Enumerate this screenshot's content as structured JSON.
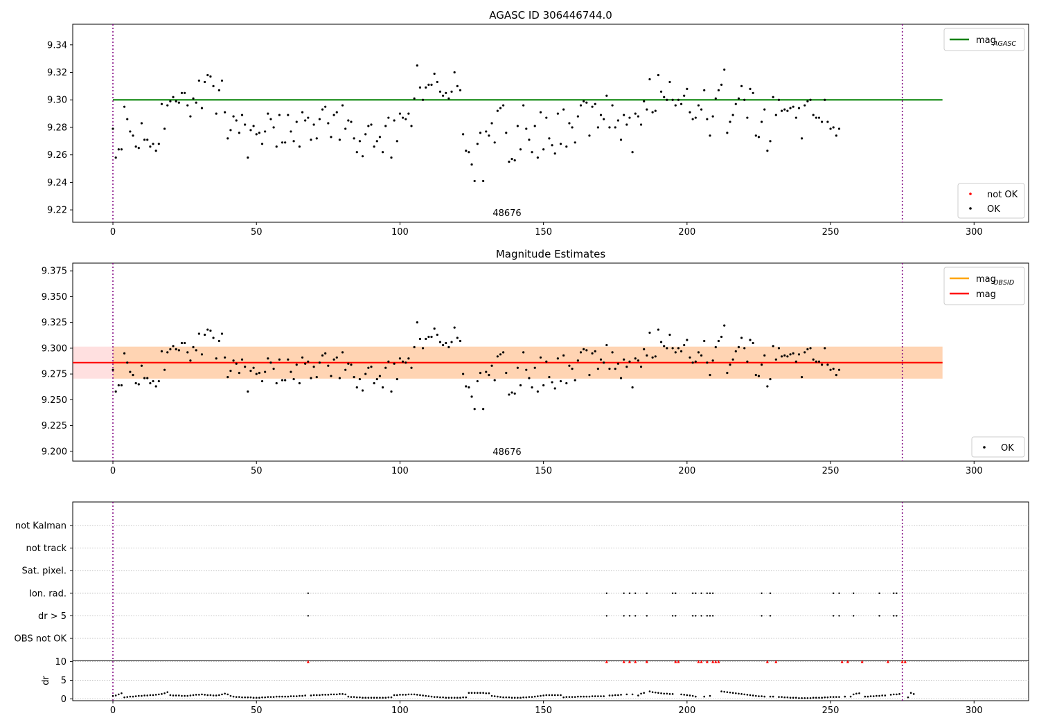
{
  "chart_data": [
    {
      "type": "scatter",
      "title": "AGASC ID 306446744.0",
      "annotation": "48676",
      "xlim": [
        -14,
        319
      ],
      "ylim": [
        9.211,
        9.355
      ],
      "xticks": [
        0,
        50,
        100,
        150,
        200,
        250,
        300
      ],
      "yticks": [
        9.22,
        9.24,
        9.26,
        9.28,
        9.3,
        9.32,
        9.34
      ],
      "ytick_labels": [
        "9.22",
        "9.24",
        "9.26",
        "9.28",
        "9.30",
        "9.32",
        "9.34"
      ],
      "vlines": [
        0,
        275
      ],
      "mag_agasc": 9.3,
      "line_range": [
        0,
        289
      ],
      "legend_lines": [
        {
          "label": "mag",
          "sub": "AGASC",
          "color": "#008000"
        }
      ],
      "legend_points": [
        {
          "label": "not OK",
          "color": "#ff0000"
        },
        {
          "label": "OK",
          "color": "#000000"
        }
      ],
      "legend_lines_position": "upper right",
      "legend_points_position": "lower right",
      "series": [
        {
          "name": "OK",
          "color": "#000000",
          "x_start": 0,
          "x_step": 1,
          "y": [
            9.279,
            9.258,
            9.264,
            9.264,
            9.295,
            9.286,
            9.277,
            9.274,
            9.266,
            9.265,
            9.283,
            9.271,
            9.271,
            9.266,
            9.268,
            9.263,
            9.268,
            9.297,
            9.279,
            9.296,
            9.299,
            9.302,
            9.299,
            9.298,
            9.305,
            9.305,
            9.296,
            9.288,
            9.301,
            9.298,
            9.314,
            9.294,
            9.313,
            9.318,
            9.317,
            9.31,
            9.29,
            9.307,
            9.314,
            9.291,
            9.272,
            9.278,
            9.288,
            9.285,
            9.276,
            9.289,
            9.282,
            9.258,
            9.278,
            9.281,
            9.275,
            9.276,
            9.268,
            9.277,
            9.29,
            9.286,
            9.28,
            9.266,
            9.289,
            9.269,
            9.269,
            9.289,
            9.277,
            9.27,
            9.284,
            9.266,
            9.291,
            9.285,
            9.287,
            9.271,
            9.282,
            9.272,
            9.286,
            9.293,
            9.295,
            9.283,
            9.273,
            9.289,
            9.291,
            9.271,
            9.296,
            9.279,
            9.285,
            9.284,
            9.272,
            9.262,
            9.27,
            9.259,
            9.275,
            9.281,
            9.282,
            9.266,
            9.27,
            9.273,
            9.262,
            9.281,
            9.287,
            9.258,
            9.285,
            9.27,
            9.29,
            9.287,
            9.286,
            9.29,
            9.281,
            9.301,
            9.325,
            9.309,
            9.3,
            9.309,
            9.311,
            9.311,
            9.319,
            9.313,
            9.306,
            9.303,
            9.305,
            9.301,
            9.306,
            9.32,
            9.31,
            9.307,
            9.275,
            9.263,
            9.262,
            9.253,
            9.241,
            9.268,
            9.276,
            9.241,
            9.277,
            9.274,
            9.283,
            9.269,
            9.292,
            9.294,
            9.296,
            9.276,
            9.255,
            9.257,
            9.256,
            9.281,
            9.264,
            9.296,
            9.279,
            9.271,
            9.262,
            9.281,
            9.258,
            9.291,
            9.264,
            9.287,
            9.272,
            9.267,
            9.261,
            9.29,
            9.268,
            9.293,
            9.266,
            9.283,
            9.28,
            9.269,
            9.288,
            9.296,
            9.299,
            9.298,
            9.274,
            9.295,
            9.297,
            9.28,
            9.289,
            9.286,
            9.303,
            9.28,
            9.296,
            9.28,
            9.285,
            9.271,
            9.289,
            9.282,
            9.287,
            9.262,
            9.29,
            9.288,
            9.282,
            9.299,
            9.293,
            9.315,
            9.291,
            9.292,
            9.318,
            9.306,
            9.302,
            9.3,
            9.313,
            9.3,
            9.296,
            9.3,
            9.297,
            9.303,
            9.308,
            9.291,
            9.286,
            9.287,
            9.296,
            9.293,
            9.307,
            9.286,
            9.274,
            9.288,
            9.301,
            9.307,
            9.311,
            9.322,
            9.276,
            9.284,
            9.289,
            9.297,
            9.301,
            9.31,
            9.3,
            9.287,
            9.308,
            9.305,
            9.274,
            9.273,
            9.284,
            9.293,
            9.263,
            9.27,
            9.302,
            9.289,
            9.3,
            9.292,
            9.293,
            9.292,
            9.294,
            9.295,
            9.287,
            9.294,
            9.272,
            9.296,
            9.299,
            9.3,
            9.289,
            9.287,
            9.287,
            9.284,
            9.3,
            9.284,
            9.279,
            9.28,
            9.274,
            9.279
          ]
        }
      ]
    },
    {
      "type": "scatter",
      "title": "Magnitude Estimates",
      "annotation": "48676",
      "xlim": [
        -14,
        319
      ],
      "ylim": [
        9.1905,
        9.3825
      ],
      "xticks": [
        0,
        50,
        100,
        150,
        200,
        250,
        300
      ],
      "yticks": [
        9.2,
        9.225,
        9.25,
        9.275,
        9.3,
        9.325,
        9.35,
        9.375
      ],
      "ytick_labels": [
        "9.200",
        "9.225",
        "9.250",
        "9.275",
        "9.300",
        "9.325",
        "9.350",
        "9.375"
      ],
      "vlines": [
        0,
        275
      ],
      "mag": 9.286,
      "mag_obsid": 9.286,
      "band_mag": [
        9.2705,
        9.3015
      ],
      "band_obsid": [
        9.2705,
        9.3015
      ],
      "band_mag_x": [
        -14,
        289
      ],
      "band_obsid_x": [
        0,
        289
      ],
      "line_range": [
        0,
        289
      ],
      "legend_lines": [
        {
          "label": "mag",
          "sub": "OBSID",
          "color": "#ffa500"
        },
        {
          "label": "mag",
          "sub": "",
          "color": "#ff0000"
        }
      ],
      "legend_points": [
        {
          "label": "OK",
          "color": "#000000"
        }
      ],
      "legend_lines_position": "upper right",
      "legend_points_position": "lower right",
      "same_series_as_panel": 0
    },
    {
      "type": "scatter",
      "title": "",
      "xlim": [
        -14,
        319
      ],
      "xticks": [
        0,
        50,
        100,
        150,
        200,
        250,
        300
      ],
      "vlines": [
        0,
        275
      ],
      "flag_rows": [
        "not Kalman",
        "not track",
        "Sat. pixel.",
        "Ion. rad.",
        "dr > 5",
        "OBS not OK"
      ],
      "flag_x": {
        "Ion. rad.": [
          68,
          172,
          178,
          180,
          182,
          186,
          195,
          196,
          202,
          203,
          205,
          207,
          208,
          209,
          226,
          229,
          251,
          253,
          258,
          267,
          272,
          273
        ],
        "dr > 5": [
          68,
          172,
          178,
          180,
          182,
          186,
          195,
          196,
          202,
          203,
          205,
          207,
          208,
          209,
          226,
          229,
          251,
          253,
          258,
          267,
          272,
          273
        ]
      },
      "dr": {
        "ylabel": "dr",
        "ylim": [
          -0.5,
          10.3
        ],
        "yticks": [
          0,
          5,
          10
        ],
        "clip_value": 10,
        "clipped_color": "#ff0000",
        "x_start": 0,
        "x_step": 1,
        "values": [
          0.8,
          0.9,
          1.2,
          1.5,
          0.4,
          0.5,
          0.6,
          0.6,
          0.7,
          0.8,
          0.8,
          0.9,
          0.9,
          1.0,
          1.0,
          1.1,
          1.2,
          1.3,
          1.5,
          1.8,
          1.0,
          0.9,
          0.9,
          0.9,
          0.8,
          0.8,
          0.8,
          0.9,
          1.0,
          1.1,
          1.1,
          1.2,
          1.1,
          1.0,
          1.0,
          0.9,
          0.9,
          1.0,
          1.2,
          1.4,
          1.2,
          0.8,
          0.6,
          0.5,
          0.5,
          0.4,
          0.4,
          0.4,
          0.4,
          0.3,
          0.3,
          0.3,
          0.4,
          0.4,
          0.5,
          0.5,
          0.5,
          0.6,
          0.6,
          0.6,
          0.6,
          0.6,
          0.7,
          0.7,
          0.7,
          0.8,
          0.8,
          0.9,
          10,
          0.9,
          1.0,
          1.0,
          1.0,
          1.1,
          1.1,
          1.1,
          1.2,
          1.2,
          1.2,
          1.3,
          1.3,
          1.2,
          0.6,
          0.5,
          0.5,
          0.4,
          0.4,
          0.3,
          0.3,
          0.3,
          0.3,
          0.3,
          0.3,
          0.3,
          0.3,
          0.3,
          0.4,
          0.4,
          1.0,
          1.0,
          1.1,
          1.1,
          1.1,
          1.2,
          1.2,
          1.2,
          1.1,
          1.0,
          0.9,
          0.8,
          0.7,
          0.6,
          0.5,
          0.5,
          0.4,
          0.4,
          0.3,
          0.3,
          0.3,
          0.3,
          0.3,
          0.3,
          0.4,
          0.4,
          1.6,
          1.6,
          1.6,
          1.6,
          1.6,
          1.6,
          1.5,
          1.5,
          0.8,
          0.7,
          0.6,
          0.5,
          0.4,
          0.4,
          0.4,
          0.3,
          0.3,
          0.3,
          0.3,
          0.4,
          0.4,
          0.5,
          0.5,
          0.6,
          0.7,
          0.8,
          0.9,
          1.0,
          1.0,
          1.0,
          1.0,
          1.0,
          1.0,
          0.4,
          0.5,
          0.5,
          0.5,
          0.5,
          0.6,
          0.6,
          0.6,
          0.6,
          0.6,
          0.7,
          0.7,
          0.7,
          0.7,
          0.7,
          10,
          0.9,
          0.9,
          1.0,
          1.0,
          1.1,
          10,
          1.2,
          10,
          1.2,
          10,
          0.9,
          1.4,
          1.6,
          10,
          2.0,
          1.8,
          1.7,
          1.6,
          1.5,
          1.4,
          1.4,
          1.3,
          1.3,
          10,
          10,
          1.2,
          1.1,
          1.0,
          0.9,
          0.8,
          0.6,
          10,
          10,
          0.6,
          10,
          0.8,
          10,
          10,
          10,
          2.0,
          1.9,
          1.8,
          1.7,
          1.6,
          1.5,
          1.4,
          1.3,
          1.2,
          1.1,
          1.0,
          0.9,
          0.8,
          0.7,
          0.7,
          0.6,
          10,
          0.6,
          0.6,
          10,
          0.5,
          0.5,
          0.4,
          0.4,
          0.3,
          0.3,
          0.3,
          0.2,
          0.2,
          0.2,
          0.2,
          0.2,
          0.3,
          0.3,
          0.3,
          0.3,
          0.4,
          0.4,
          0.5,
          0.5,
          0.5,
          0.5,
          10,
          0.6,
          10,
          0.6,
          1.2,
          1.4,
          1.5,
          10,
          0.6,
          0.6,
          0.7,
          0.7,
          0.8,
          0.8,
          0.9,
          0.9,
          10,
          1.1,
          1.2,
          1.2,
          1.3,
          10,
          10,
          0.4,
          1.6,
          1.3
        ]
      }
    }
  ]
}
